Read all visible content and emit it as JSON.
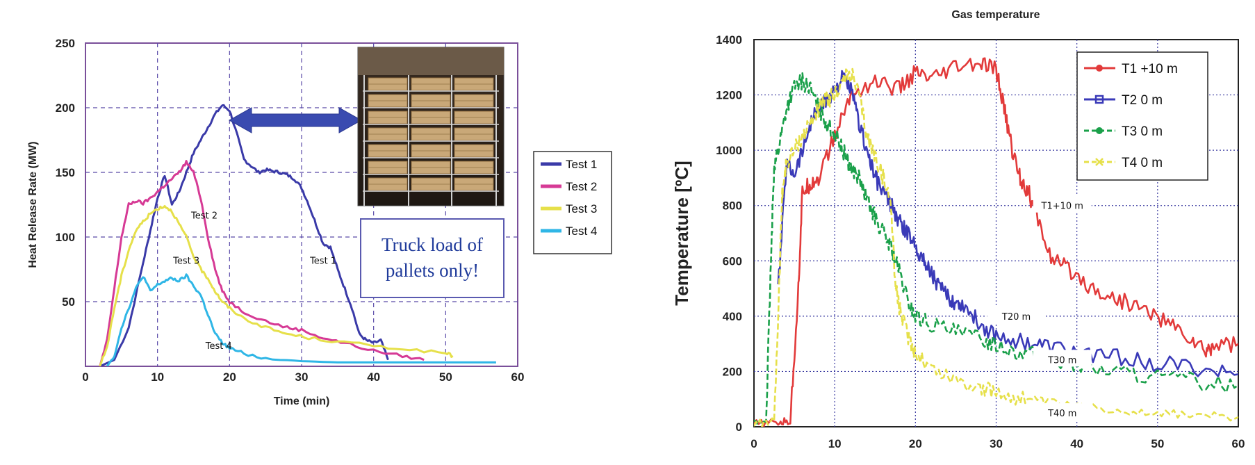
{
  "chart_data": [
    {
      "type": "line",
      "title": "",
      "xlabel": "Time (min)",
      "ylabel": "Heat Release Rate (MW)",
      "xlim": [
        0,
        60
      ],
      "ylim": [
        0,
        250
      ],
      "xticks": [
        "0",
        "10",
        "20",
        "30",
        "40",
        "50",
        "60"
      ],
      "yticks": [
        "50",
        "100",
        "150",
        "200",
        "250"
      ],
      "grid": true,
      "legend_position": "right-outside",
      "callout_text_lines": [
        "Truck load of",
        "pallets only!"
      ],
      "inset_photo": "photo-of-wooden-pallets-on-storage-racks",
      "series": [
        {
          "name": "Test 1",
          "color": "#3a3aa8",
          "x": [
            2,
            4,
            6,
            8,
            9,
            10,
            11,
            12,
            13,
            14,
            15,
            16,
            17,
            18,
            19,
            20,
            21,
            22,
            23,
            24,
            25,
            26,
            27,
            28,
            29,
            30,
            31,
            32,
            33,
            34,
            35,
            36,
            37,
            38,
            39,
            40,
            41,
            42
          ],
          "y": [
            0,
            5,
            30,
            80,
            105,
            130,
            148,
            125,
            135,
            150,
            165,
            175,
            185,
            195,
            202,
            198,
            180,
            160,
            155,
            150,
            152,
            151,
            150,
            148,
            145,
            138,
            125,
            110,
            95,
            92,
            75,
            60,
            45,
            25,
            20,
            18,
            20,
            5
          ]
        },
        {
          "name": "Test 2",
          "color": "#d63a95",
          "x": [
            2,
            3,
            4,
            5,
            6,
            7,
            8,
            9,
            10,
            11,
            12,
            13,
            14,
            15,
            16,
            17,
            18,
            19,
            20,
            22,
            25,
            28,
            30,
            33,
            36,
            40,
            44,
            47
          ],
          "y": [
            0,
            20,
            60,
            100,
            125,
            128,
            126,
            130,
            135,
            140,
            145,
            150,
            158,
            150,
            130,
            100,
            75,
            58,
            50,
            42,
            35,
            30,
            28,
            22,
            18,
            12,
            8,
            5
          ]
        },
        {
          "name": "Test 3",
          "color": "#e6e04a",
          "x": [
            2,
            3,
            4,
            5,
            6,
            7,
            8,
            9,
            10,
            11,
            12,
            13,
            14,
            15,
            16,
            17,
            18,
            19,
            20,
            22,
            25,
            28,
            31,
            35,
            40,
            45,
            50,
            51
          ],
          "y": [
            0,
            15,
            45,
            70,
            90,
            105,
            112,
            118,
            122,
            124,
            120,
            110,
            100,
            85,
            75,
            68,
            58,
            50,
            45,
            37,
            30,
            25,
            22,
            19,
            16,
            13,
            10,
            8
          ]
        },
        {
          "name": "Test 4",
          "color": "#2fb6e6",
          "x": [
            3,
            4,
            5,
            6,
            7,
            8,
            9,
            10,
            11,
            12,
            13,
            14,
            15,
            16,
            17,
            18,
            19,
            20,
            22,
            25,
            30,
            35,
            40,
            45,
            50,
            57
          ],
          "y": [
            0,
            8,
            30,
            45,
            60,
            70,
            58,
            63,
            66,
            68,
            66,
            70,
            62,
            55,
            40,
            25,
            18,
            14,
            10,
            6,
            4,
            3,
            3,
            3,
            3,
            3
          ]
        }
      ],
      "annotations": [
        {
          "text": "Test 2",
          "x": 16.5,
          "y": 117
        },
        {
          "text": "Test 3",
          "x": 14,
          "y": 82
        },
        {
          "text": "Test 1",
          "x": 33,
          "y": 82
        },
        {
          "text": "Test 4",
          "x": 18.5,
          "y": 16
        }
      ]
    },
    {
      "type": "line",
      "title": "Gas temperature",
      "xlabel": "",
      "ylabel": "Temperature [ºC]",
      "xlim": [
        0,
        60
      ],
      "ylim": [
        0,
        1400
      ],
      "xticks": [
        "0",
        "10",
        "20",
        "30",
        "40",
        "50",
        "60"
      ],
      "yticks": [
        "0",
        "200",
        "400",
        "600",
        "800",
        "1000",
        "1200",
        "1400"
      ],
      "grid": true,
      "legend_position": "top-right",
      "series": [
        {
          "name": "T1 +10 m",
          "color": "#e23a3a",
          "dash": "solid",
          "marker": "circle",
          "x": [
            0,
            3,
            4.5,
            5.5,
            6,
            7,
            8,
            10,
            12,
            15,
            18,
            20,
            22,
            25,
            28,
            30,
            31,
            32,
            33,
            34,
            35,
            37,
            39,
            42,
            45,
            48,
            51,
            54,
            56,
            57,
            60
          ],
          "y": [
            10,
            15,
            20,
            500,
            850,
            880,
            900,
            1050,
            1200,
            1250,
            1220,
            1280,
            1250,
            1300,
            1310,
            1290,
            1150,
            1000,
            900,
            850,
            760,
            600,
            570,
            500,
            460,
            430,
            380,
            320,
            270,
            300,
            300
          ]
        },
        {
          "name": "T2 0 m",
          "color": "#3a3ab8",
          "dash": "solid",
          "marker": "square",
          "x": [
            3,
            4,
            5,
            6,
            7,
            8,
            9,
            10,
            11,
            12,
            13,
            14,
            15,
            16,
            17,
            18,
            19,
            20,
            21,
            22,
            23,
            24,
            25,
            26,
            28,
            30,
            33,
            36,
            40,
            45,
            50,
            55,
            60
          ],
          "y": [
            500,
            950,
            920,
            1000,
            1100,
            1150,
            1180,
            1220,
            1260,
            1220,
            1100,
            1000,
            900,
            850,
            800,
            740,
            700,
            660,
            600,
            560,
            500,
            470,
            450,
            440,
            370,
            330,
            310,
            290,
            270,
            250,
            230,
            210,
            190
          ]
        },
        {
          "name": "T3 0 m",
          "color": "#1aa04a",
          "dash": "dashed",
          "marker": "circle",
          "x": [
            0,
            1.5,
            2,
            2.5,
            3,
            4,
            5,
            6,
            7,
            8,
            9,
            10,
            11,
            12,
            13,
            14,
            15,
            16,
            17,
            18,
            19,
            20,
            22,
            25,
            28,
            30,
            33,
            36,
            40,
            45,
            50,
            55,
            60
          ],
          "y": [
            10,
            20,
            500,
            950,
            1000,
            1150,
            1230,
            1250,
            1220,
            1150,
            1100,
            1060,
            1000,
            940,
            900,
            820,
            760,
            700,
            650,
            560,
            460,
            400,
            370,
            340,
            320,
            300,
            270,
            250,
            220,
            200,
            180,
            165,
            150
          ]
        },
        {
          "name": "T4 0 m",
          "color": "#e6e04a",
          "dash": "dashed",
          "marker": "x",
          "x": [
            0,
            2.5,
            3,
            3.5,
            4,
            5,
            6,
            7,
            8,
            9,
            10,
            11,
            12,
            13,
            14,
            15,
            16,
            17,
            17.5,
            18,
            19,
            20,
            22,
            25,
            28,
            30,
            33,
            36,
            40,
            45,
            50,
            55,
            60
          ],
          "y": [
            10,
            20,
            400,
            850,
            950,
            1000,
            1050,
            1100,
            1150,
            1180,
            1200,
            1250,
            1280,
            1200,
            1050,
            980,
            900,
            800,
            520,
            430,
            330,
            270,
            210,
            170,
            140,
            120,
            105,
            90,
            75,
            60,
            50,
            42,
            35
          ]
        }
      ],
      "annotations": [
        {
          "text": "T1+10 m",
          "x": 38.2,
          "y": 800
        },
        {
          "text": "T20 m",
          "x": 32.5,
          "y": 400
        },
        {
          "text": "T30 m",
          "x": 38.2,
          "y": 243
        },
        {
          "text": "T40 m",
          "x": 38.2,
          "y": 50
        }
      ]
    }
  ]
}
